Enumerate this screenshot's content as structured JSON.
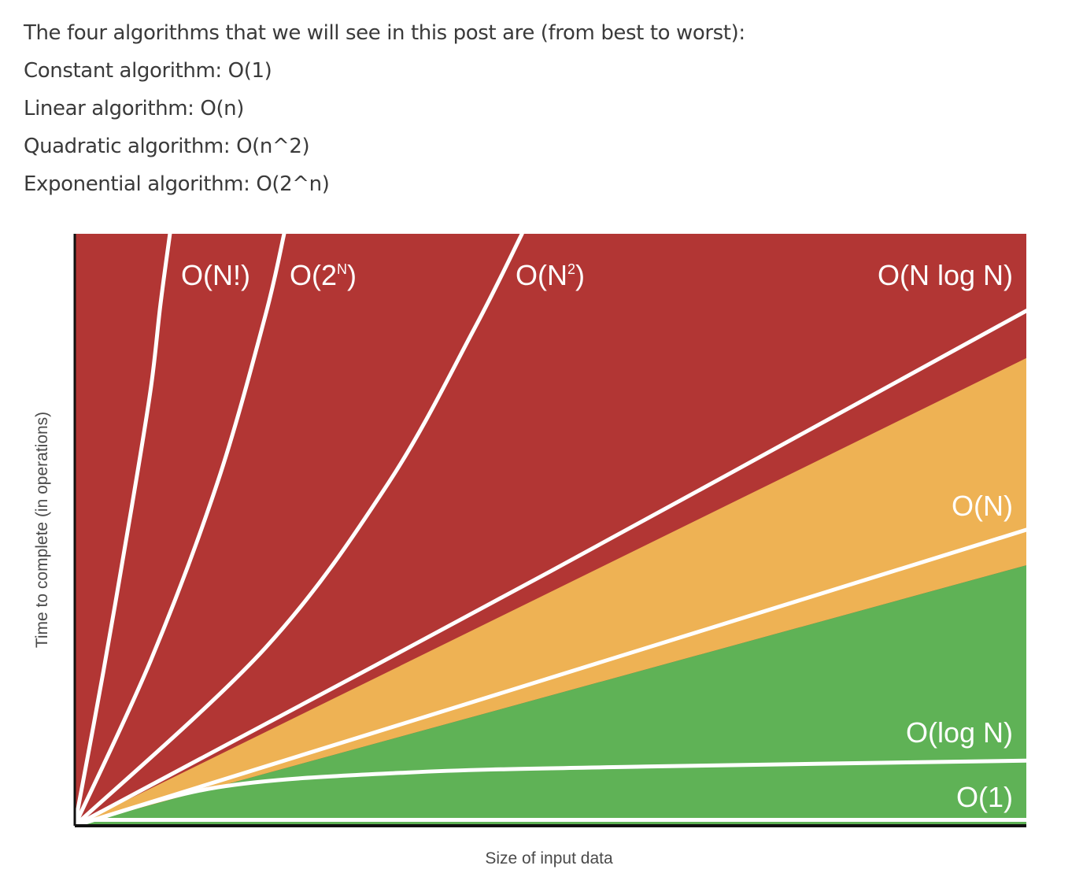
{
  "intro": {
    "heading": "The four algorithms that we will see in this post are (from best to worst):",
    "items": [
      "Constant algorithm: O(1)",
      "Linear algorithm: O(n)",
      "Quadratic algorithm: O(n^2)",
      "Exponential algorithm: O(2^n)"
    ]
  },
  "chart_data": {
    "type": "area",
    "title": "",
    "xlabel": "Size of input data",
    "ylabel": "Time to complete (in operations)",
    "xlim": [
      0,
      1
    ],
    "ylim": [
      0,
      1
    ],
    "grid": false,
    "legend": "inline",
    "colors": {
      "bad": "#b23634",
      "fair": "#eeb254",
      "good": "#5fb256",
      "curve": "#ffffff"
    },
    "zones": [
      {
        "name": "bad",
        "color": "#b23634"
      },
      {
        "name": "fair",
        "color": "#eeb254"
      },
      {
        "name": "good",
        "color": "#5fb256"
      }
    ],
    "series": [
      {
        "name": "O(N!)",
        "label": "O(N!)",
        "label_sup": "",
        "x": [
          0,
          0.03,
          0.06,
          0.08,
          0.09,
          0.1
        ],
        "y": [
          0,
          0.26,
          0.54,
          0.74,
          0.88,
          1.0
        ]
      },
      {
        "name": "O(2^N)",
        "label": "O(2",
        "label_sup": "N",
        "label_tail": ")",
        "x": [
          0,
          0.08,
          0.15,
          0.2,
          0.22
        ],
        "y": [
          0,
          0.28,
          0.58,
          0.86,
          1.0
        ]
      },
      {
        "name": "O(N^2)",
        "label": "O(N",
        "label_sup": "2",
        "label_tail": ")",
        "x": [
          0,
          0.2,
          0.33,
          0.42,
          0.47
        ],
        "y": [
          0,
          0.3,
          0.58,
          0.84,
          1.0
        ]
      },
      {
        "name": "O(N log N)",
        "label": "O(N log N)",
        "label_sup": "",
        "x": [
          0,
          0.5,
          1.0
        ],
        "y": [
          0,
          0.43,
          0.87
        ]
      },
      {
        "name": "O(N)",
        "label": "O(N)",
        "label_sup": "",
        "x": [
          0,
          0.5,
          1.0
        ],
        "y": [
          0,
          0.25,
          0.5
        ]
      },
      {
        "name": "O(log N)",
        "label": "O(log N)",
        "label_sup": "",
        "x": [
          0,
          0.15,
          0.35,
          0.6,
          1.0
        ],
        "y": [
          0,
          0.065,
          0.09,
          0.1,
          0.11
        ]
      },
      {
        "name": "O(1)",
        "label": "O(1)",
        "label_sup": "",
        "x": [
          0,
          1.0
        ],
        "y": [
          0.01,
          0.01
        ]
      }
    ]
  }
}
